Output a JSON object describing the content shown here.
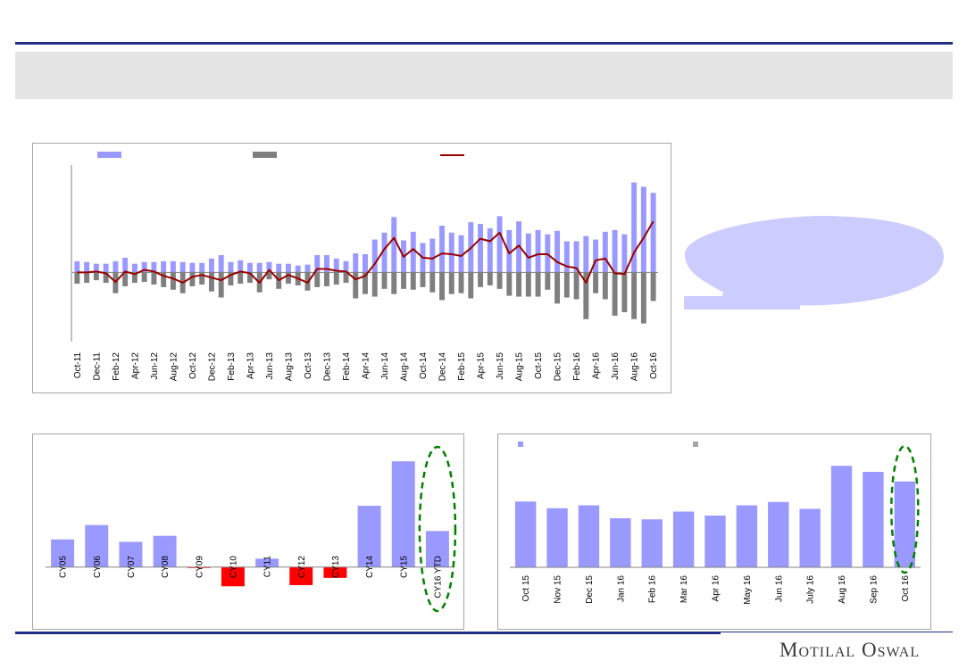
{
  "brand": {
    "logo_text": "Motilal Oswal"
  },
  "colors": {
    "blue_bar": "#9999ff",
    "grey_bar": "#7f7f7f",
    "net_line": "#990000",
    "negative_bar": "#ff0000",
    "callout_fill": "#ccccff",
    "highlight_ellipse": "#008000",
    "rule": "#1f2d86"
  },
  "chart_data": [
    {
      "type": "bar",
      "legend": [
        {
          "swatch": "bar",
          "color": "#9999ff"
        },
        {
          "swatch": "bar",
          "color": "#7f7f7f"
        },
        {
          "swatch": "line",
          "color": "#990000"
        }
      ],
      "categories": [
        "Oct-11",
        "Nov-11",
        "Dec-11",
        "Jan-12",
        "Feb-12",
        "Mar-12",
        "Apr-12",
        "May-12",
        "Jun-12",
        "Jul-12",
        "Aug-12",
        "Sep-12",
        "Oct-12",
        "Nov-12",
        "Dec-12",
        "Jan-13",
        "Feb-13",
        "Mar-13",
        "Apr-13",
        "May-13",
        "Jun-13",
        "Jul-13",
        "Aug-13",
        "Sep-13",
        "Oct-13",
        "Nov-13",
        "Dec-13",
        "Jan-14",
        "Feb-14",
        "Mar-14",
        "Apr-14",
        "May-14",
        "Jun-14",
        "Jul-14",
        "Aug-14",
        "Sep-14",
        "Oct-14",
        "Nov-14",
        "Dec-14",
        "Jan-15",
        "Feb-15",
        "Mar-15",
        "Apr-15",
        "May-15",
        "Jun-15",
        "Jul-15",
        "Aug-15",
        "Sep-15",
        "Oct-15",
        "Nov-15",
        "Dec-15",
        "Jan-16",
        "Feb-16",
        "Mar-16",
        "Apr-16",
        "May-16",
        "Jun-16",
        "Jul-16",
        "Aug-16",
        "Sep-16",
        "Oct-16"
      ],
      "tick_labels_every": 2,
      "series": [
        {
          "values": [
            13,
            12,
            10,
            10,
            13,
            17,
            10,
            12,
            12,
            13,
            13,
            12,
            11,
            11,
            16,
            20,
            12,
            14,
            11,
            11,
            12,
            10,
            10,
            8,
            9,
            20,
            20,
            16,
            13,
            22,
            21,
            38,
            46,
            64,
            37,
            47,
            34,
            39,
            54,
            46,
            43,
            58,
            56,
            51,
            65,
            49,
            59,
            45,
            49,
            44,
            48,
            36,
            36,
            42,
            38,
            47,
            49,
            44,
            104,
            99,
            92
          ]
        },
        {
          "values": [
            -13,
            -12,
            -9,
            -12,
            -24,
            -16,
            -12,
            -11,
            -14,
            -17,
            -20,
            -24,
            -16,
            -14,
            -22,
            -29,
            -15,
            -13,
            -12,
            -23,
            -8,
            -19,
            -13,
            -15,
            -21,
            -17,
            -16,
            -14,
            -12,
            -30,
            -25,
            -28,
            -19,
            -25,
            -19,
            -20,
            -17,
            -23,
            -32,
            -25,
            -24,
            -30,
            -17,
            -15,
            -19,
            -27,
            -28,
            -28,
            -28,
            -20,
            -36,
            -29,
            -31,
            -54,
            -24,
            -31,
            -50,
            -46,
            -54,
            -59,
            -33
          ]
        },
        {
          "values": [
            0,
            0,
            1,
            -1,
            -11,
            1,
            -2,
            3,
            1,
            -4,
            -7,
            -12,
            -5,
            -3,
            -6,
            -9,
            -3,
            1,
            -1,
            -12,
            3,
            -9,
            -3,
            -7,
            -12,
            4,
            4,
            2,
            1,
            -8,
            -4,
            10,
            27,
            40,
            18,
            27,
            17,
            16,
            22,
            21,
            19,
            28,
            39,
            36,
            46,
            22,
            31,
            17,
            21,
            21,
            12,
            7,
            5,
            -12,
            14,
            16,
            -1,
            -2,
            23,
            40,
            59
          ]
        }
      ],
      "ylim": [
        -80,
        120
      ]
    },
    {
      "type": "bar",
      "categories": [
        "CY05",
        "CY06",
        "CY07",
        "CY08",
        "CY09",
        "CY10",
        "CY11",
        "CY12",
        "CY13",
        "CY14",
        "CY15",
        "CY16 YTD"
      ],
      "values": [
        11.5,
        17.5,
        10.5,
        13,
        -0.3,
        -8,
        3.5,
        -7.5,
        -4.5,
        25.5,
        44,
        15
      ],
      "ylim": [
        -22,
        50
      ]
    },
    {
      "type": "bar",
      "legend": [
        {
          "swatch": "bar",
          "color": "#9999ff"
        },
        {
          "swatch": "bar",
          "color": "#a6a6a6"
        }
      ],
      "categories": [
        "Oct 15",
        "Nov 15",
        "Dec 15",
        "Jan 16",
        "Feb 16",
        "Mar 16",
        "Apr 16",
        "May 16",
        "Jun 16",
        "July 16",
        "Aug 16",
        "Sep 16",
        "Oct 16"
      ],
      "values": [
        2.95,
        2.65,
        2.78,
        2.2,
        2.15,
        2.5,
        2.32,
        2.78,
        2.93,
        2.62,
        4.55,
        4.28,
        3.85
      ],
      "ylim": [
        0,
        5.4
      ]
    }
  ]
}
